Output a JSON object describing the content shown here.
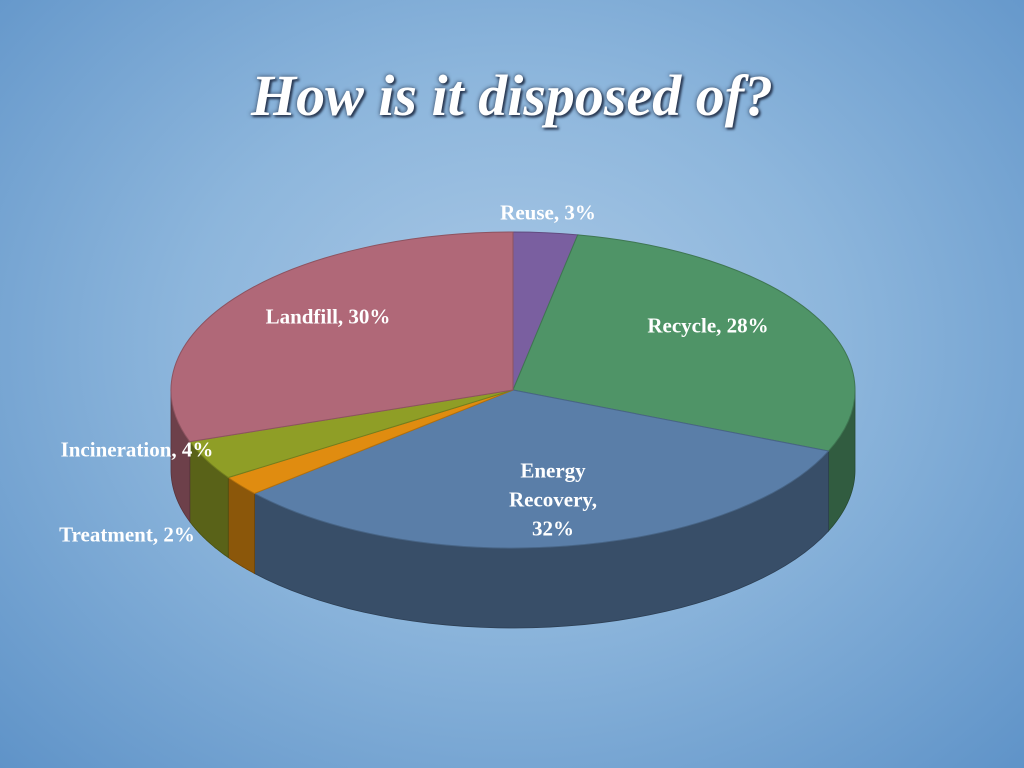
{
  "chart_data": {
    "type": "pie3d",
    "title": "How is it disposed of?",
    "values": [
      3,
      28,
      32,
      2,
      4,
      30
    ],
    "value_labels": [
      "Reuse, 3%",
      "Recycle, 28%",
      "Energy Recovery, 32%",
      "Treatment, 2%",
      "Incineration, 4%",
      "Landfill, 30%"
    ],
    "colors": [
      "#7a5fa0",
      "#4f9467",
      "#5a7ea8",
      "#e08c10",
      "#8f9e26",
      "#b06878"
    ]
  }
}
